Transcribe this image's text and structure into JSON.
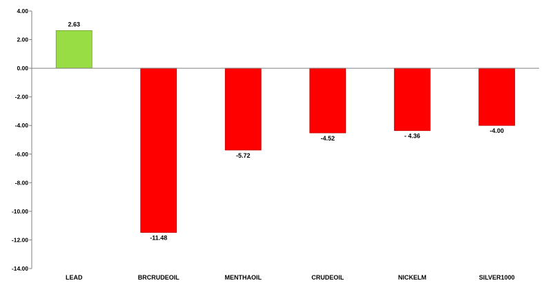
{
  "chart_data": {
    "type": "bar",
    "title": "",
    "xlabel": "",
    "ylabel": "",
    "categories": [
      "LEAD",
      "BRCRUDEOIL",
      "MENTHAOIL",
      "CRUDEOIL",
      "NICKELM",
      "SILVER1000"
    ],
    "values": [
      2.63,
      -11.48,
      -5.72,
      -4.52,
      -4.36,
      -4.0
    ],
    "value_labels": [
      "2.63",
      "-11.48",
      "-5.72",
      "-4.52",
      "- 4.36",
      "-4.00"
    ],
    "ylim": [
      -14,
      4
    ],
    "yticks": [
      4,
      2,
      0,
      -2,
      -4,
      -6,
      -8,
      -10,
      -12,
      -14
    ],
    "ytick_labels": [
      "4.00",
      "2.00",
      "0.00",
      "-2.00",
      "-4.00",
      "-6.00",
      "-8.00",
      "-10.00",
      "-12.00",
      "-14.00"
    ],
    "grid": false,
    "legend": "none",
    "colors": {
      "positive_fill": "#99dd44",
      "positive_stroke": "#6a9e24",
      "negative_fill": "#ff0000",
      "negative_stroke": "#c00000",
      "axis": "#7f7f7f"
    }
  }
}
